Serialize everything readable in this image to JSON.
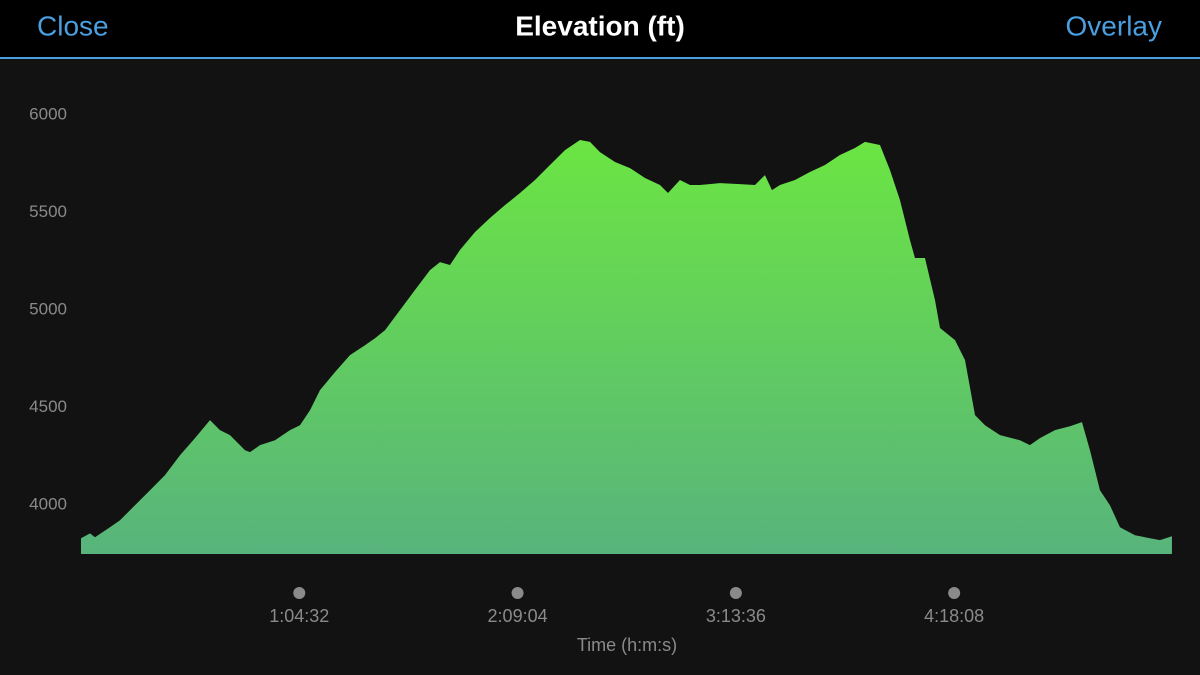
{
  "header": {
    "left": "Close",
    "right": "Overlay"
  },
  "chart_data": {
    "type": "area",
    "title": "Elevation (ft)",
    "x_label": "Time (h:m:s)",
    "gradient": [
      "#6be543",
      "#58b47c"
    ],
    "xlim": [
      0,
      19352
    ],
    "ylim": [
      3750,
      6000
    ],
    "yticks": [
      4000,
      4500,
      5000,
      5500,
      6000
    ],
    "xticks": [
      {
        "value": 3872,
        "label": "1:04:32"
      },
      {
        "value": 7744,
        "label": "2:09:04"
      },
      {
        "value": 11616,
        "label": "3:13:36"
      },
      {
        "value": 15488,
        "label": "4:18:08"
      }
    ],
    "grid": false,
    "x": [
      0,
      160,
      248,
      514,
      692,
      958,
      1224,
      1490,
      1756,
      2022,
      2288,
      2465,
      2643,
      2909,
      2998,
      3175,
      3441,
      3707,
      3884,
      4062,
      4239,
      4505,
      4771,
      5037,
      5215,
      5392,
      5658,
      5924,
      6190,
      6368,
      6545,
      6722,
      6988,
      7254,
      7520,
      7787,
      8053,
      8319,
      8585,
      8851,
      9028,
      9205,
      9472,
      9738,
      10004,
      10270,
      10412,
      10624,
      10802,
      10979,
      11334,
      11689,
      11955,
      12132,
      12256,
      12398,
      12664,
      12930,
      13196,
      13462,
      13728,
      13906,
      14172,
      14349,
      14527,
      14704,
      14793,
      14970,
      15148,
      15237,
      15503,
      15680,
      15858,
      16035,
      16301,
      16655,
      16832,
      17010,
      17276,
      17542,
      17755,
      17897,
      18074,
      18251,
      18429,
      18695,
      18961,
      19138,
      19351
    ],
    "values": [
      3831,
      3856,
      3836,
      3887,
      3923,
      4000,
      4077,
      4154,
      4256,
      4344,
      4436,
      4385,
      4359,
      4282,
      4272,
      4308,
      4333,
      4385,
      4410,
      4487,
      4590,
      4682,
      4769,
      4820,
      4856,
      4897,
      5000,
      5103,
      5205,
      5246,
      5231,
      5308,
      5400,
      5472,
      5538,
      5600,
      5667,
      5744,
      5820,
      5872,
      5862,
      5810,
      5759,
      5728,
      5677,
      5641,
      5600,
      5667,
      5641,
      5641,
      5651,
      5646,
      5641,
      5692,
      5615,
      5641,
      5667,
      5708,
      5744,
      5795,
      5831,
      5862,
      5846,
      5718,
      5564,
      5359,
      5267,
      5267,
      5051,
      4908,
      4846,
      4744,
      4462,
      4410,
      4359,
      4333,
      4308,
      4344,
      4385,
      4405,
      4426,
      4282,
      4077,
      4000,
      3887,
      3846,
      3831,
      3821,
      3841
    ]
  }
}
